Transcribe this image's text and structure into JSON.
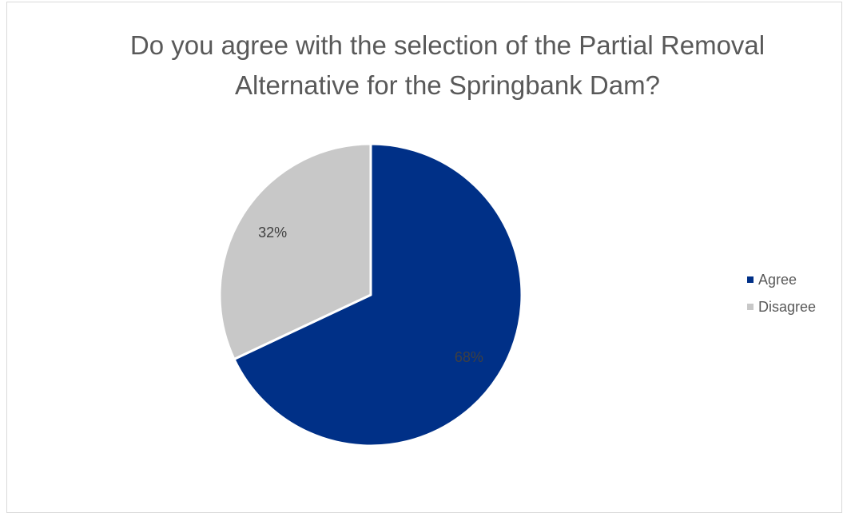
{
  "chart_data": {
    "type": "pie",
    "title": "Do you agree with the selection of the Partial Removal Alternative for the Springbank Dam?",
    "slices": [
      {
        "label": "Agree",
        "value": 68,
        "display": "68%",
        "color": "#003087",
        "label_color": "#404040"
      },
      {
        "label": "Disagree",
        "value": 32,
        "display": "32%",
        "color": "#c8c8c8",
        "label_color": "#404040"
      }
    ],
    "legend_position": "right"
  }
}
